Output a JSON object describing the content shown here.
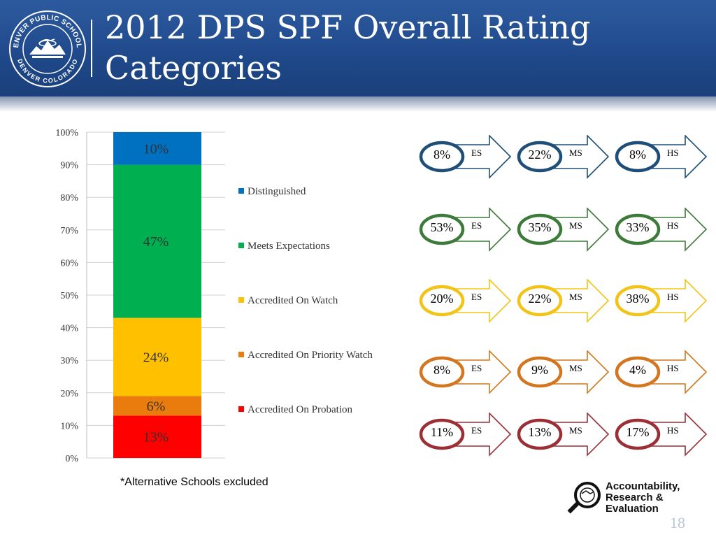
{
  "slide": {
    "title": "2012 DPS SPF Overall Rating Categories",
    "footnote": "*Alternative Schools excluded",
    "page_number": "18",
    "seal_top_text": "DENVER PUBLIC SCHOOLS",
    "seal_bottom_text": "DENVER COLORADO",
    "logo_lines": [
      "Accountability,",
      "Research &",
      "Evaluation"
    ]
  },
  "colors": {
    "header": "#204a8c",
    "distinguished": "#0070c0",
    "meets": "#00b050",
    "watch": "#ffc000",
    "priority_watch": "#e97c0c",
    "probation": "#ff0000"
  },
  "chart_data": {
    "type": "bar",
    "stacked": true,
    "categories": [
      ""
    ],
    "series": [
      {
        "name": "Accredited On Probation",
        "values": [
          13
        ],
        "label": "13%",
        "color": "#ff0000"
      },
      {
        "name": "Accredited On Priority Watch",
        "values": [
          6
        ],
        "label": "6%",
        "color": "#e97c0c"
      },
      {
        "name": "Accredited On Watch",
        "values": [
          24
        ],
        "label": "24%",
        "color": "#ffc000"
      },
      {
        "name": "Meets Expectations",
        "values": [
          47
        ],
        "label": "47%",
        "color": "#00b050"
      },
      {
        "name": "Distinguished",
        "values": [
          10
        ],
        "label": "10%",
        "color": "#0070c0"
      }
    ],
    "y_ticks": [
      "0%",
      "10%",
      "20%",
      "30%",
      "40%",
      "50%",
      "60%",
      "70%",
      "80%",
      "90%",
      "100%"
    ],
    "ylim": [
      0,
      100
    ],
    "grid": true,
    "legend_order": [
      "Distinguished",
      "Meets Expectations",
      "Accredited On Watch",
      "Accredited On Priority Watch",
      "Accredited On Probation"
    ],
    "legend_position": "right"
  },
  "breakdown": [
    {
      "category": "Distinguished",
      "color": "#1f4e79",
      "items": [
        {
          "pct": "8%",
          "level": "ES"
        },
        {
          "pct": "22%",
          "level": "MS"
        },
        {
          "pct": "8%",
          "level": "HS"
        }
      ]
    },
    {
      "category": "Meets Expectations",
      "color": "#3e7a3a",
      "items": [
        {
          "pct": "53%",
          "level": "ES"
        },
        {
          "pct": "35%",
          "level": "MS"
        },
        {
          "pct": "33%",
          "level": "HS"
        }
      ]
    },
    {
      "category": "Accredited On Watch",
      "color": "#f2c318",
      "items": [
        {
          "pct": "20%",
          "level": "ES"
        },
        {
          "pct": "22%",
          "level": "MS"
        },
        {
          "pct": "38%",
          "level": "HS"
        }
      ]
    },
    {
      "category": "Accredited On Priority Watch",
      "color": "#d3761f",
      "items": [
        {
          "pct": "8%",
          "level": "ES"
        },
        {
          "pct": "9%",
          "level": "MS"
        },
        {
          "pct": "4%",
          "level": "HS"
        }
      ]
    },
    {
      "category": "Accredited On Probation",
      "color": "#9b2f35",
      "items": [
        {
          "pct": "11%",
          "level": "ES"
        },
        {
          "pct": "13%",
          "level": "MS"
        },
        {
          "pct": "17%",
          "level": "HS"
        }
      ]
    }
  ]
}
